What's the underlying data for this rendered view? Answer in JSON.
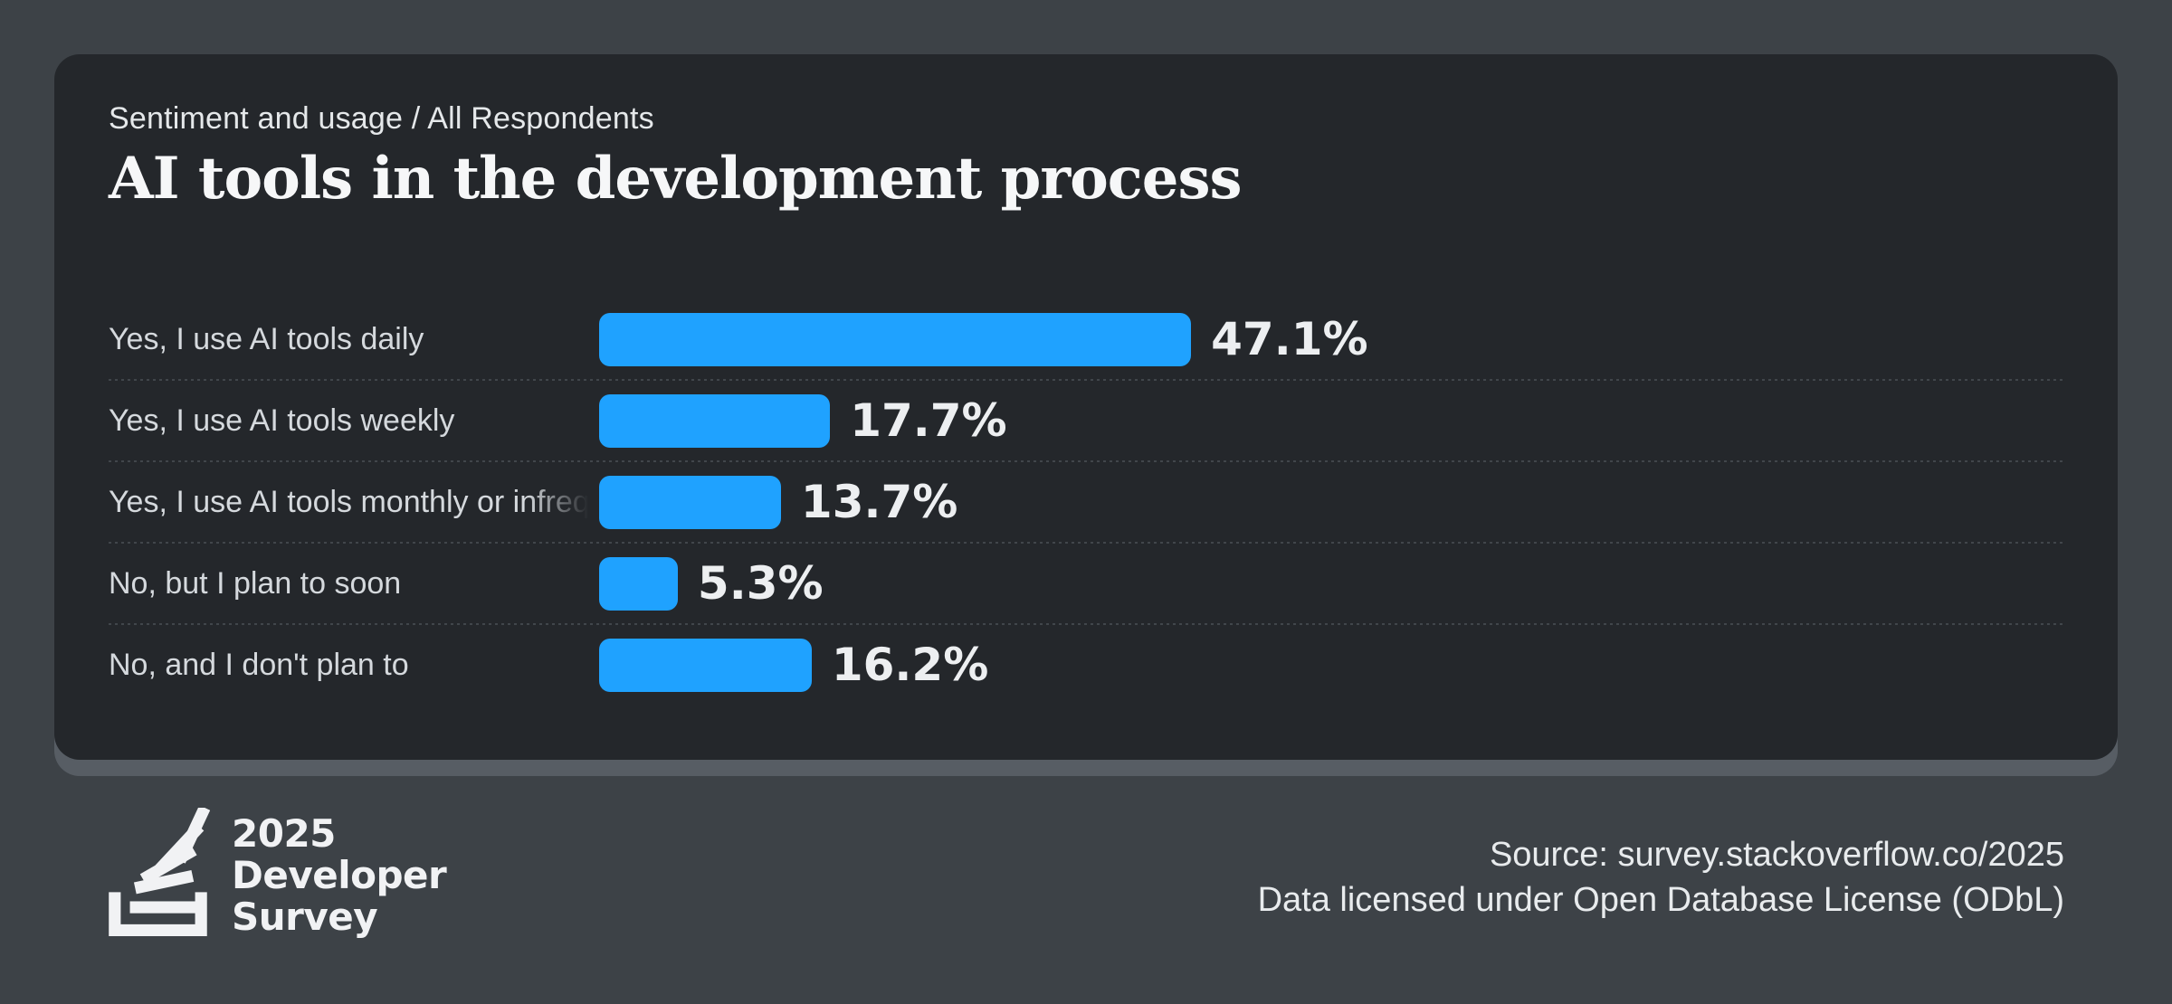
{
  "chart_data": {
    "type": "bar",
    "orientation": "horizontal",
    "breadcrumb": "Sentiment and usage / All Respondents",
    "title": "AI tools in the development process",
    "categories": [
      "Yes, I use AI tools daily",
      "Yes, I use AI tools weekly",
      "Yes, I use AI tools monthly or infrequently",
      "No, but I plan to soon",
      "No, and I don't plan to"
    ],
    "values": [
      47.1,
      17.7,
      13.7,
      5.3,
      16.2
    ],
    "value_labels": [
      "47.1%",
      "17.7%",
      "13.7%",
      "5.3%",
      "16.2%"
    ],
    "xlim": [
      0,
      100
    ],
    "grid": false,
    "legend": false,
    "bar_color": "#1fa2ff"
  },
  "footer": {
    "logo": {
      "icon": "stackoverflow-logo",
      "line1": "2025",
      "line2": "Developer",
      "line3": "Survey"
    },
    "source_line1": "Source: survey.stackoverflow.co/2025",
    "source_line2": "Data licensed under Open Database License (ODbL)"
  },
  "colors": {
    "page_bg": "#3d4247",
    "card_bg": "#24272b",
    "card_shadow": "#575d64",
    "bar": "#1fa2ff",
    "separator": "#4b5056"
  }
}
